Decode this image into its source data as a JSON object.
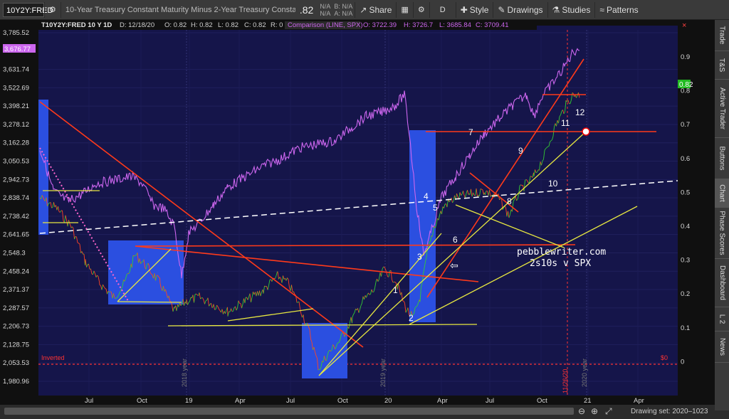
{
  "toolbar": {
    "symbol": "10Y2Y:FRED",
    "description": "10-Year Treasury Constant Maturity Minus 2-Year Treasury Constant M...",
    "price": ".82",
    "bid_ask": [
      "N/A",
      "N/A",
      "B: N/A",
      "A: N/A"
    ],
    "share": "Share",
    "period": "D",
    "style": "Style",
    "drawings": "Drawings",
    "studies": "Studies",
    "patterns": "Patterns"
  },
  "chart_header": {
    "title": "T10Y2Y:FRED 10 Y 1D",
    "ohlc": [
      "D: 12/18/20",
      "O: 0.82",
      "H: 0.82",
      "L: 0.82",
      "C: 0.82",
      "R: 0"
    ],
    "comparison_label": "Comparison (LINE, SPX)",
    "comparison_values": [
      "O: 3722.39",
      "H: 3726.7",
      "L: 3685.84",
      "C: 3709.41"
    ]
  },
  "left_axis": [
    "3,785.52",
    "3,676.77",
    "3,631.74",
    "3,522.69",
    "3,398.21",
    "3,278.12",
    "3,162.28",
    "3,050.53",
    "2,942.73",
    "2,838.74",
    "2,738.42",
    "2,641.65",
    "2,548.3",
    "2,458.24",
    "2,371.37",
    "2,287.57",
    "2,206.73",
    "2,128.75",
    "2,053.53",
    "1,980.96"
  ],
  "spx_last_label": "3,676.77",
  "right_axis": [
    "0.9",
    "0.8",
    "0.7",
    "0.6",
    "0.5",
    "0.4",
    "0.3",
    "0.2",
    "0.1",
    "0"
  ],
  "price_tag": "0.82",
  "x_axis": [
    "Jul",
    "Oct",
    "19",
    "Apr",
    "Jul",
    "Oct",
    "20",
    "Apr",
    "Jul",
    "Oct",
    "21",
    "Apr"
  ],
  "year_markers": [
    "2018 year",
    "2019 year",
    "2020 year"
  ],
  "date_marker": "11/26/20",
  "inverted_label": "Inverted",
  "zero_label": "$0",
  "annotations": {
    "watermark": "pebblewriter.com",
    "subtitle": "2s10s v SPX",
    "numbers": [
      "1",
      "2",
      "3",
      "4",
      "5",
      "6",
      "7",
      "8",
      "9",
      "10",
      "11",
      "12"
    ]
  },
  "drawing_set": "Drawing set: 2020–1023",
  "sidebar": [
    "Trade",
    "T&S",
    "Active Trader",
    "Buttons",
    "Chart",
    "Phase Scores",
    "Dashboard",
    "L 2",
    "News"
  ],
  "colors": {
    "chart_bg": "#15154a",
    "spx_line": "#cc66ee",
    "trend_red": "#ff3a1a",
    "trend_yellow": "#e8e840",
    "highlight_blue": "#2b4fe0",
    "dashed": "#ffffff"
  }
}
